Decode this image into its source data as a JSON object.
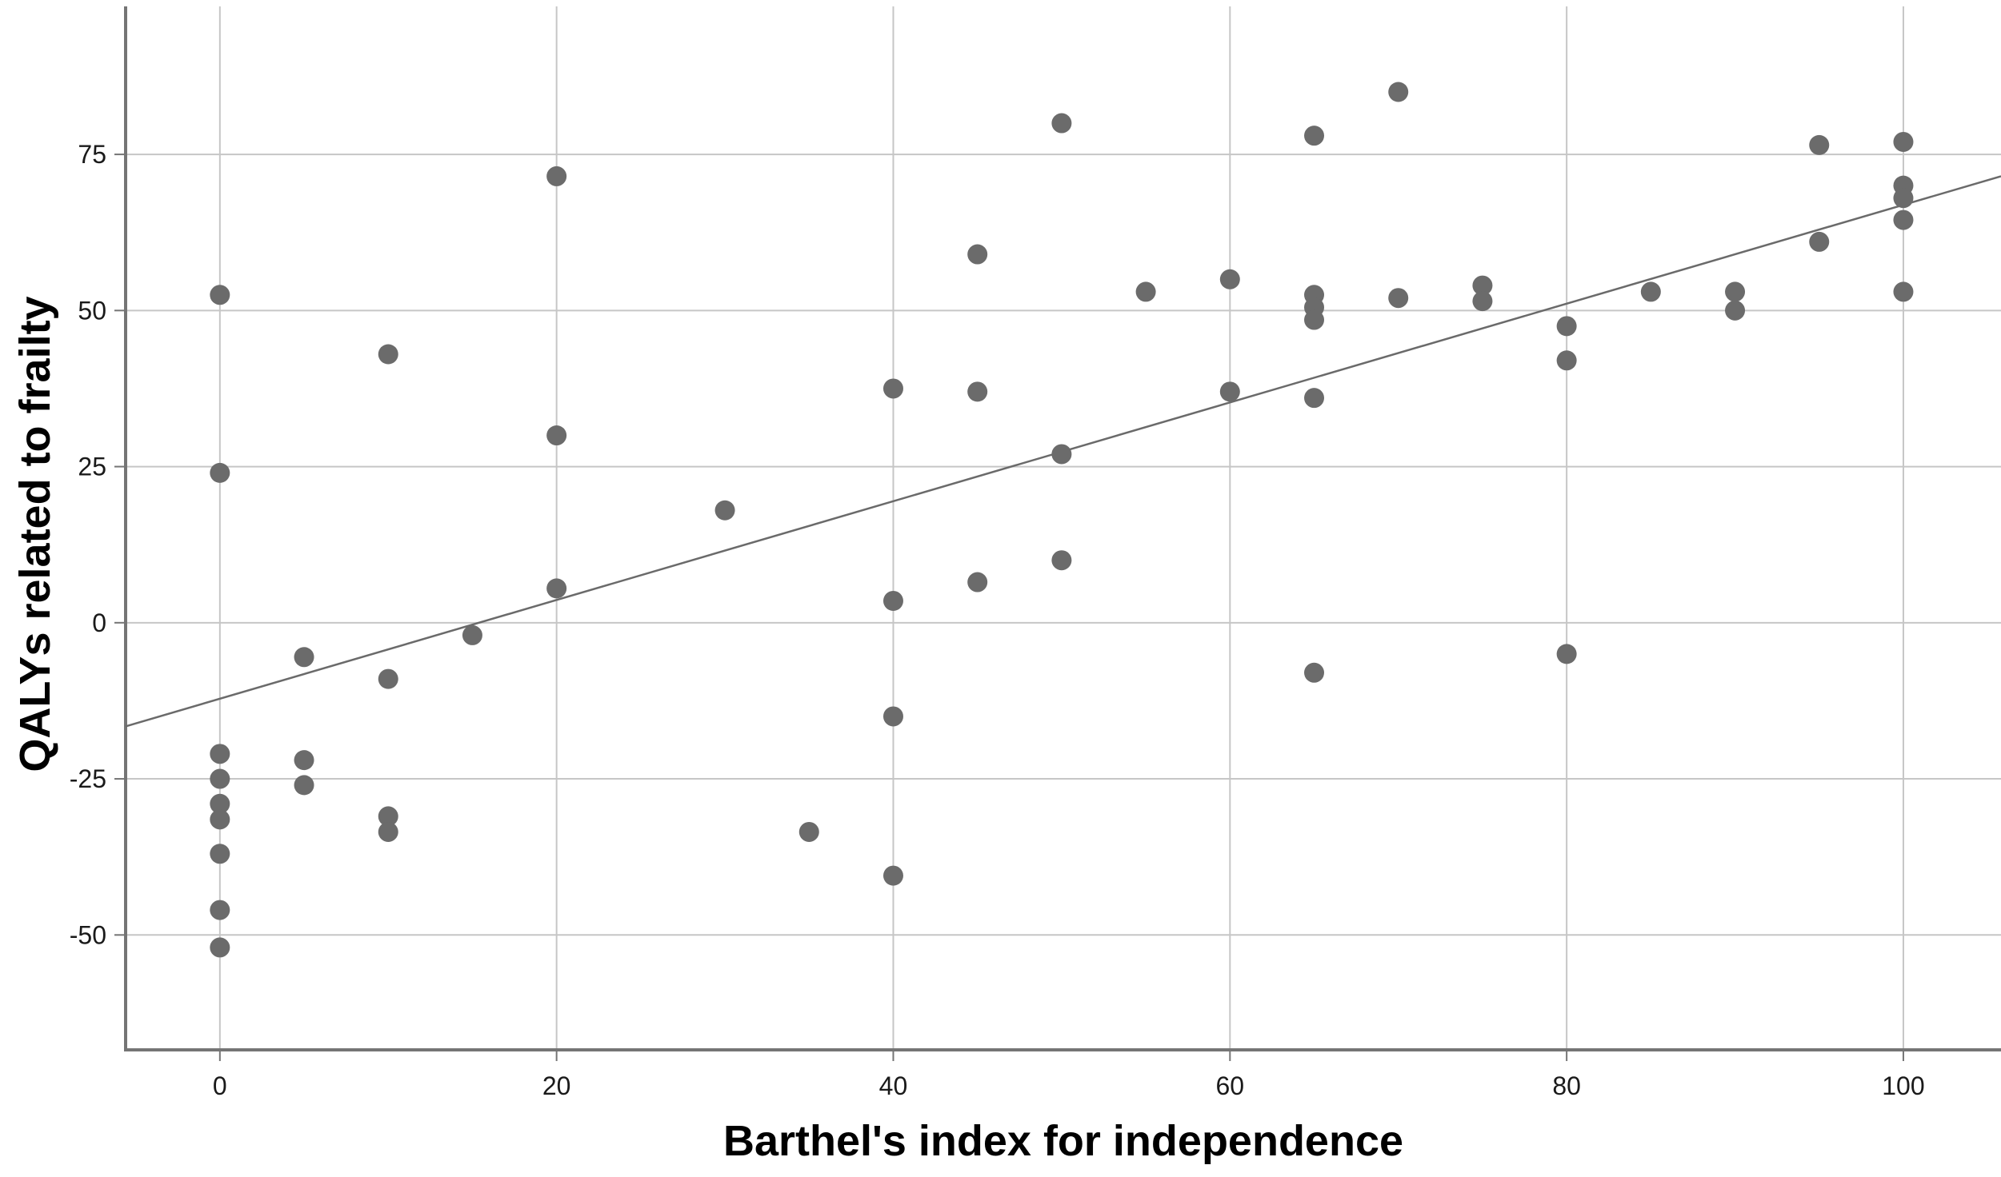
{
  "chart_data": {
    "type": "scatter",
    "title": "",
    "xlabel": "Barthel's index for independence",
    "ylabel": "QALYs related to frailty",
    "x_ticks": [
      0,
      20,
      40,
      60,
      80,
      100
    ],
    "y_ticks": [
      75,
      50,
      25,
      0,
      -25,
      -50
    ],
    "xlim": [
      -5.6,
      105.8
    ],
    "ylim": [
      -68.4,
      98.7
    ],
    "grid": true,
    "legend": "none",
    "points": [
      [
        0,
        52.5
      ],
      [
        0,
        24
      ],
      [
        0,
        -21
      ],
      [
        0,
        -25
      ],
      [
        0,
        -29
      ],
      [
        0,
        -31.5
      ],
      [
        0,
        -37
      ],
      [
        0,
        -46
      ],
      [
        0,
        -52
      ],
      [
        5,
        -5.5
      ],
      [
        5,
        -22
      ],
      [
        5,
        -26
      ],
      [
        10,
        43
      ],
      [
        10,
        -9
      ],
      [
        10,
        -31
      ],
      [
        10,
        -33.5
      ],
      [
        15,
        -2
      ],
      [
        20,
        71.5
      ],
      [
        20,
        30
      ],
      [
        20,
        5.5
      ],
      [
        30,
        18
      ],
      [
        35,
        -33.5
      ],
      [
        40,
        37.5
      ],
      [
        40,
        3.5
      ],
      [
        40,
        -15
      ],
      [
        40,
        -40.5
      ],
      [
        45,
        59
      ],
      [
        45,
        37
      ],
      [
        45,
        6.5
      ],
      [
        50,
        80
      ],
      [
        50,
        27
      ],
      [
        50,
        10
      ],
      [
        55,
        53
      ],
      [
        60,
        55
      ],
      [
        60,
        37
      ],
      [
        65,
        78
      ],
      [
        65,
        52.5
      ],
      [
        65,
        50.5
      ],
      [
        65,
        48.5
      ],
      [
        65,
        36
      ],
      [
        65,
        -8
      ],
      [
        70,
        85
      ],
      [
        70,
        52
      ],
      [
        75,
        54
      ],
      [
        75,
        51.5
      ],
      [
        80,
        47.5
      ],
      [
        80,
        42
      ],
      [
        80,
        -5
      ],
      [
        85,
        53
      ],
      [
        90,
        53
      ],
      [
        90,
        50
      ],
      [
        95,
        76.5
      ],
      [
        95,
        61
      ],
      [
        100,
        77
      ],
      [
        100,
        70
      ],
      [
        100,
        68
      ],
      [
        100,
        64.5
      ],
      [
        100,
        53
      ]
    ],
    "trend_line": {
      "x1": -5.6,
      "y1": -16.6,
      "x2": 105.8,
      "y2": 71.5
    },
    "colors": {
      "point": "#6b6b6b",
      "trend": "#6a6a6a",
      "grid": "#c6c6c6",
      "axis": "#757575",
      "tick_text": "#1a1a1a",
      "background": "#ffffff"
    }
  }
}
